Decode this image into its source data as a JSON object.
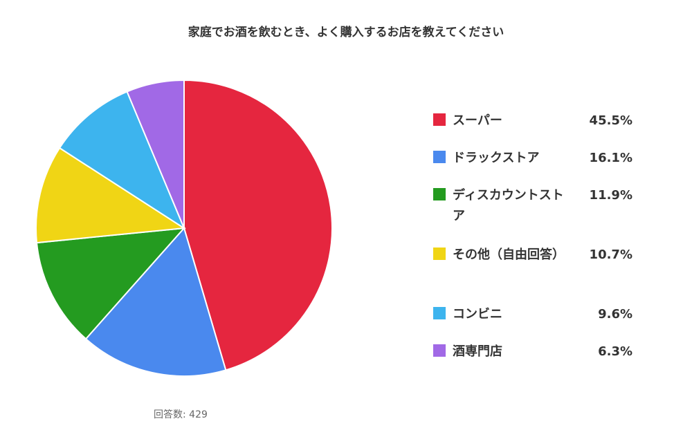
{
  "chart_data": {
    "type": "pie",
    "title": "家庭でお酒を飲むとき、よく購入するお店を教えてください",
    "slices": [
      {
        "label": "スーパー",
        "value": 45.5,
        "display": "45.5%",
        "color": "#e5263f"
      },
      {
        "label": "ドラックストア",
        "value": 16.1,
        "display": "16.1%",
        "color": "#4a89ee"
      },
      {
        "label": "ディスカウントストア",
        "value": 11.9,
        "display": "11.9%",
        "color": "#249b20"
      },
      {
        "label": "その他（自由回答）",
        "value": 10.7,
        "display": "10.7%",
        "color": "#f0d515"
      },
      {
        "label": "コンビニ",
        "value": 9.6,
        "display": "9.6%",
        "color": "#3db4ee"
      },
      {
        "label": "酒専門店",
        "value": 6.3,
        "display": "6.3%",
        "color": "#a169e6"
      }
    ],
    "legend_position": "right",
    "note": "回答数: 429"
  }
}
